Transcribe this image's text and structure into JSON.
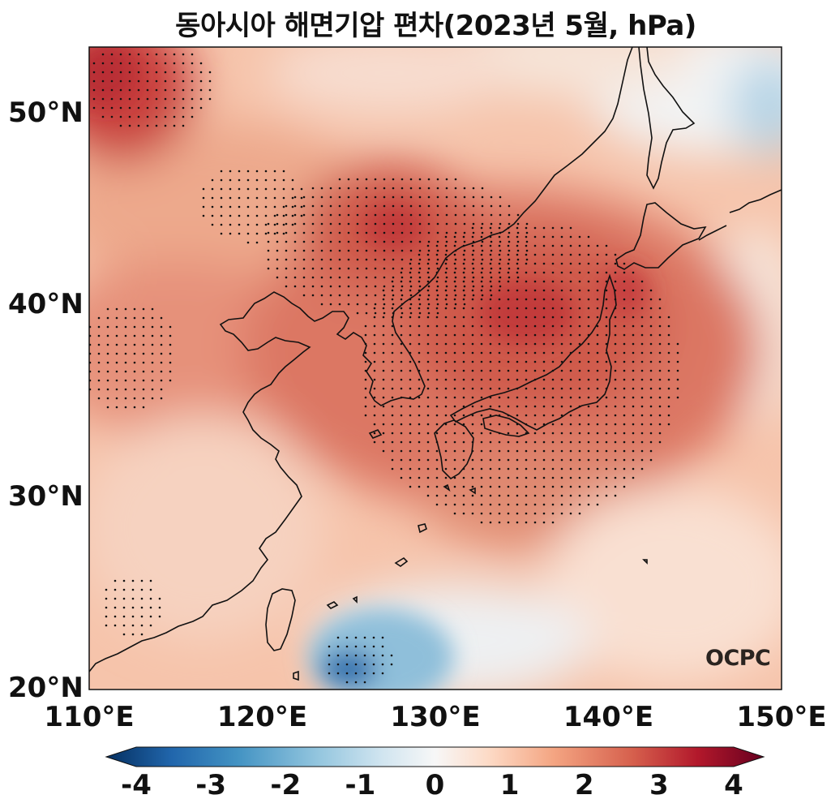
{
  "title": "동아시아 해면기압 편차(2023년 5월, hPa)",
  "logo": "OCPC",
  "map": {
    "lon_range": [
      110,
      150
    ],
    "lat_range": [
      20,
      53.5
    ],
    "lat_ticks": [
      {
        "value": 20,
        "label": "20°N"
      },
      {
        "value": 30,
        "label": "30°N"
      },
      {
        "value": 40,
        "label": "40°N"
      },
      {
        "value": 50,
        "label": "50°N"
      }
    ],
    "lon_ticks": [
      {
        "value": 110,
        "label": "110°E"
      },
      {
        "value": 120,
        "label": "120°E"
      },
      {
        "value": 130,
        "label": "130°E"
      },
      {
        "value": 140,
        "label": "140°E"
      },
      {
        "value": 150,
        "label": "150°E"
      }
    ]
  },
  "colorbar": {
    "range": [
      -4,
      4
    ],
    "extend": "both",
    "ticks": [
      {
        "value": -4,
        "label": "-4"
      },
      {
        "value": -3,
        "label": "-3"
      },
      {
        "value": -2,
        "label": "-2"
      },
      {
        "value": -1,
        "label": "-1"
      },
      {
        "value": 0,
        "label": "0"
      },
      {
        "value": 1,
        "label": "1"
      },
      {
        "value": 2,
        "label": "2"
      },
      {
        "value": 3,
        "label": "3"
      },
      {
        "value": 4,
        "label": "4"
      }
    ],
    "colors": [
      "#053061",
      "#2166ac",
      "#4393c3",
      "#92c5de",
      "#d1e5f0",
      "#f7f7f7",
      "#fddbc7",
      "#f4a582",
      "#d6604d",
      "#b2182b",
      "#67001f"
    ]
  }
}
